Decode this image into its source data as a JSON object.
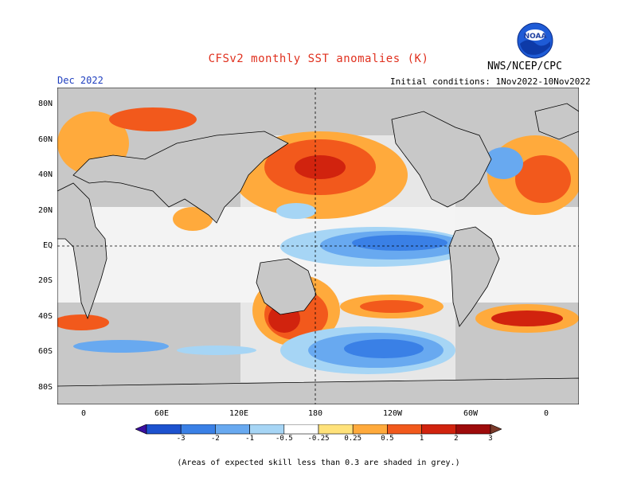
{
  "title": "CFSv2 monthly SST anomalies (K)",
  "agency": "NWS/NCEP/CPC",
  "logo_text": "NOAA",
  "month": "Dec 2022",
  "initial_conditions": "Initial conditions: 1Nov2022-10Nov2022",
  "lat_labels": [
    "80N",
    "60N",
    "40N",
    "20N",
    "EQ",
    "20S",
    "40S",
    "60S",
    "80S"
  ],
  "lon_labels": [
    "0",
    "60E",
    "120E",
    "180",
    "120W",
    "60W",
    "0"
  ],
  "colorbar": {
    "labels": [
      "-3",
      "-2",
      "-1",
      "-0.5",
      "-0.25",
      "0.25",
      "0.5",
      "1",
      "2",
      "3"
    ],
    "colors": [
      "#3a0f9f",
      "#1d52cf",
      "#3a80e6",
      "#68a9f0",
      "#a6d5f5",
      "#ffffff",
      "#ffe27a",
      "#ffaa3c",
      "#f2591c",
      "#d1230e",
      "#9e0b0b",
      "#7a3a2a"
    ]
  },
  "note": "(Areas of expected skill less than 0.3 are shaded in grey.)",
  "colors": {
    "title": "#e0301e",
    "month": "#1f3fbf",
    "low_skill": "#c8c8c8"
  }
}
